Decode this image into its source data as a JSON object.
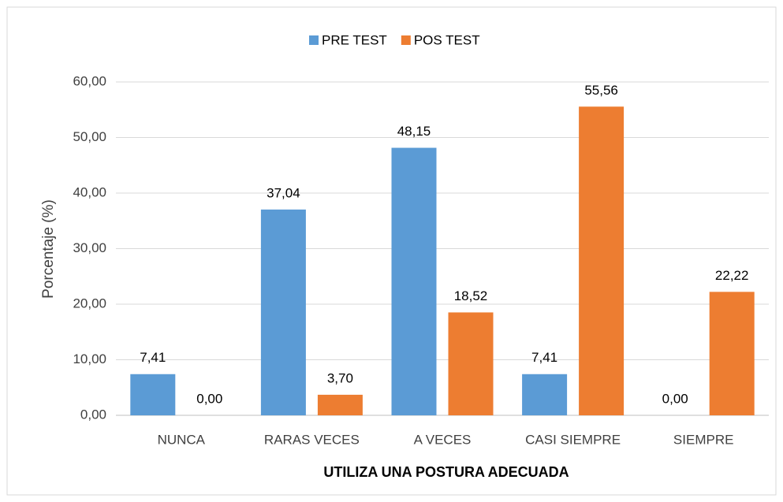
{
  "chart_data": {
    "type": "bar",
    "xlabel": "UTILIZA UNA POSTURA ADECUADA",
    "ylabel": "Porcentaje (%)",
    "categories": [
      "NUNCA",
      "RARAS VECES",
      "A VECES",
      "CASI SIEMPRE",
      "SIEMPRE"
    ],
    "series": [
      {
        "name": "PRE TEST",
        "color": "#5b9bd5",
        "values": [
          7.41,
          37.04,
          48.15,
          7.41,
          0
        ],
        "value_labels": [
          "7,41",
          "37,04",
          "48,15",
          "7,41",
          "0,00"
        ]
      },
      {
        "name": "POS TEST",
        "color": "#ed7d31",
        "values": [
          0,
          3.7,
          18.52,
          55.56,
          22.22
        ],
        "value_labels": [
          "0,00",
          "3,70",
          "18,52",
          "55,56",
          "22,22"
        ]
      }
    ],
    "ylim": [
      0,
      60
    ],
    "yticks": [
      {
        "value": 0,
        "label": "0,00"
      },
      {
        "value": 10,
        "label": "10,00"
      },
      {
        "value": 20,
        "label": "20,00"
      },
      {
        "value": 30,
        "label": "30,00"
      },
      {
        "value": 40,
        "label": "40,00"
      },
      {
        "value": 50,
        "label": "50,00"
      },
      {
        "value": 60,
        "label": "60,00"
      }
    ],
    "grid": true,
    "legend": "top"
  }
}
